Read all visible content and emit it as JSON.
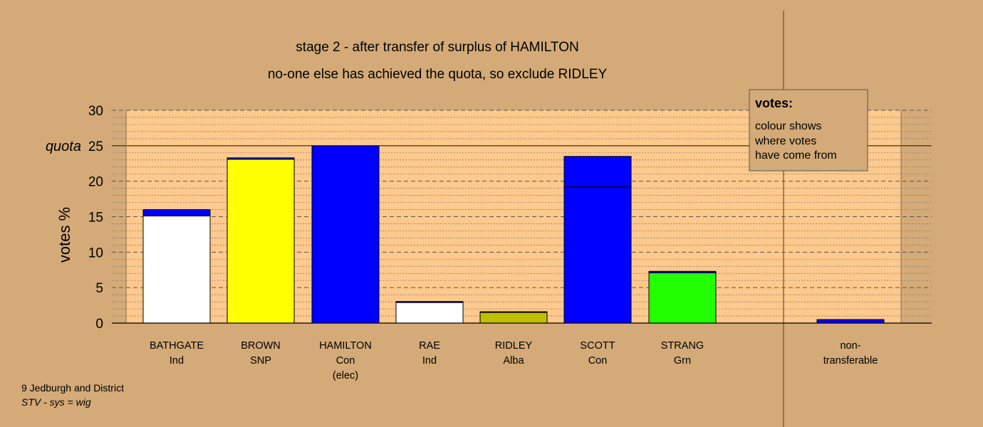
{
  "chart_data": {
    "type": "bar",
    "title": "stage 2 - after transfer of surplus of HAMILTON",
    "subtitle": "no-one else has achieved the quota, so exclude RIDLEY",
    "ylabel": "votes %",
    "ylim": [
      0,
      30
    ],
    "yticks": [
      0,
      5,
      10,
      15,
      20,
      25,
      30
    ],
    "quota": {
      "value": 25,
      "label": "quota"
    },
    "grid": true,
    "categories": [
      {
        "name": "BATHGATE",
        "party": "Ind",
        "note": ""
      },
      {
        "name": "BROWN",
        "party": "SNP",
        "note": ""
      },
      {
        "name": "HAMILTON",
        "party": "Con",
        "note": "(elec)"
      },
      {
        "name": "RAE",
        "party": "Ind",
        "note": ""
      },
      {
        "name": "RIDLEY",
        "party": "Alba",
        "note": ""
      },
      {
        "name": "SCOTT",
        "party": "Con",
        "note": ""
      },
      {
        "name": "STRANG",
        "party": "Grn",
        "note": ""
      },
      {
        "name": "non-",
        "party": "transferable",
        "note": ""
      }
    ],
    "bars": [
      {
        "segments": [
          {
            "value": 15.1,
            "color": "#ffffff"
          },
          {
            "value": 0.9,
            "color": "#0000ff"
          }
        ]
      },
      {
        "segments": [
          {
            "value": 23.1,
            "color": "#ffff00"
          },
          {
            "value": 0.2,
            "color": "#0000ff"
          }
        ]
      },
      {
        "segments": [
          {
            "value": 25.0,
            "color": "#0000ff"
          }
        ]
      },
      {
        "segments": [
          {
            "value": 2.9,
            "color": "#ffffff"
          },
          {
            "value": 0.15,
            "color": "#0000ff"
          }
        ]
      },
      {
        "segments": [
          {
            "value": 1.5,
            "color": "#bfbf00"
          },
          {
            "value": 0.1,
            "color": "#0000ff"
          }
        ]
      },
      {
        "segments": [
          {
            "value": 19.2,
            "color": "#0000ff"
          },
          {
            "value": 4.3,
            "color": "#0000ff"
          }
        ]
      },
      {
        "segments": [
          {
            "value": 7.1,
            "color": "#22ff00"
          },
          {
            "value": 0.2,
            "color": "#0000ff"
          }
        ]
      },
      {
        "segments": [
          {
            "value": 0.5,
            "color": "#0000ff"
          }
        ]
      }
    ],
    "legend": {
      "title": "votes:",
      "lines": [
        "colour shows",
        "where votes",
        "have come from"
      ],
      "placement": "top-right"
    }
  },
  "caption": {
    "line1": "9 Jedburgh and District",
    "line2": "STV - sys = wig"
  },
  "colors": {
    "background": "#d4aa78",
    "plot_area": "#fdc98c",
    "legend_box": "#d4aa78"
  }
}
